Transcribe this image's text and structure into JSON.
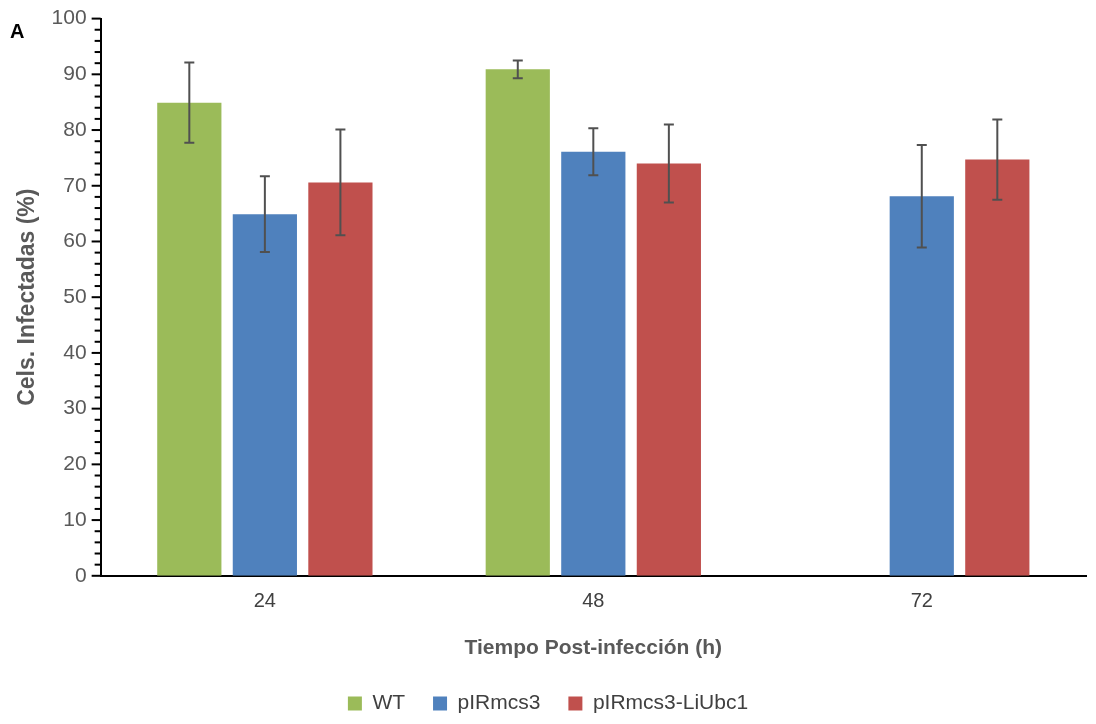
{
  "chart_data": {
    "type": "bar",
    "xlabel": "Tiempo Post-infección (h)",
    "ylabel": "Cels. Infectadas (%)",
    "annotations": [
      "A"
    ],
    "categories": [
      "24",
      "48",
      "72"
    ],
    "series": [
      {
        "name": "WT",
        "color": "#9bbb59",
        "values": [
          84.9,
          90.9,
          null
        ],
        "errors": [
          7.2,
          1.6,
          null
        ]
      },
      {
        "name": "pIRmcs3",
        "color": "#4f81bd",
        "values": [
          64.9,
          76.1,
          68.1
        ],
        "errors": [
          6.8,
          4.2,
          9.2
        ]
      },
      {
        "name": "pIRmcs3-LiUbc1",
        "color": "#c0504d",
        "values": [
          70.6,
          74.0,
          74.7
        ],
        "errors": [
          9.5,
          7.0,
          7.2
        ]
      }
    ],
    "ylim": [
      0,
      100
    ],
    "yticks": [
      0,
      {
        "value": 2,
        "label": null
      },
      {
        "value": 4,
        "label": null
      },
      {
        "value": 6,
        "label": null
      },
      {
        "value": 8,
        "label": null
      },
      10,
      {
        "value": 12,
        "label": null
      },
      {
        "value": 14,
        "label": null
      },
      {
        "value": 16,
        "label": null
      },
      {
        "value": 18,
        "label": null
      },
      20,
      {
        "value": 22,
        "label": null
      },
      {
        "value": 24,
        "label": null
      },
      {
        "value": 26,
        "label": null
      },
      {
        "value": 28,
        "label": null
      },
      30,
      {
        "value": 32,
        "label": null
      },
      {
        "value": 34,
        "label": null
      },
      {
        "value": 36,
        "label": null
      },
      {
        "value": 38,
        "label": null
      },
      40,
      {
        "value": 42,
        "label": null
      },
      {
        "value": 44,
        "label": null
      },
      {
        "value": 46,
        "label": null
      },
      {
        "value": 48,
        "label": null
      },
      50,
      {
        "value": 52,
        "label": null
      },
      {
        "value": 54,
        "label": null
      },
      {
        "value": 56,
        "label": null
      },
      {
        "value": 58,
        "label": null
      },
      60,
      {
        "value": 62,
        "label": null
      },
      {
        "value": 64,
        "label": null
      },
      {
        "value": 66,
        "label": null
      },
      {
        "value": 68,
        "label": null
      },
      70,
      {
        "value": 72,
        "label": null
      },
      {
        "value": 74,
        "label": null
      },
      {
        "value": 76,
        "label": null
      },
      {
        "value": 78,
        "label": null
      },
      80,
      {
        "value": 82,
        "label": null
      },
      {
        "value": 84,
        "label": null
      },
      {
        "value": 86,
        "label": null
      },
      {
        "value": 88,
        "label": null
      },
      90,
      {
        "value": 92,
        "label": null
      },
      {
        "value": 94,
        "label": null
      },
      {
        "value": 96,
        "label": null
      },
      {
        "value": 98,
        "label": null
      },
      100
    ],
    "grid": false,
    "legend": "bottom"
  }
}
